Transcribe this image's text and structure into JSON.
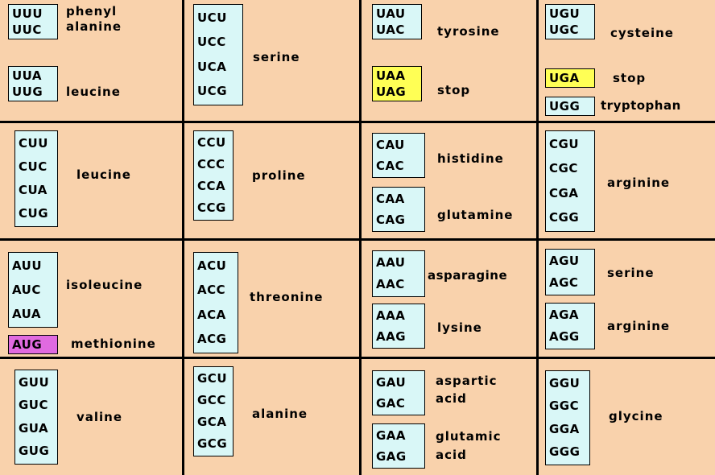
{
  "cells": {
    "UU": {
      "groups": [
        {
          "codons": [
            "UUU",
            "UUC"
          ],
          "name": [
            "phenyl",
            "alanine"
          ]
        },
        {
          "codons": [
            "UUA",
            "UUG"
          ],
          "name": [
            "leucine"
          ]
        }
      ]
    },
    "UC": {
      "groups": [
        {
          "codons": [
            "UCU",
            "UCC",
            "UCA",
            "UCG"
          ],
          "name": [
            "serine"
          ]
        }
      ]
    },
    "UA": {
      "groups": [
        {
          "codons": [
            "UAU",
            "UAC"
          ],
          "name": [
            "tyrosine"
          ]
        },
        {
          "codons": [
            "UAA",
            "UAG"
          ],
          "name": [
            "stop"
          ]
        }
      ]
    },
    "UG": {
      "groups": [
        {
          "codons": [
            "UGU",
            "UGC"
          ],
          "name": [
            "cysteine"
          ]
        },
        {
          "codons": [
            "UGA"
          ],
          "name": [
            "stop"
          ]
        },
        {
          "codons": [
            "UGG"
          ],
          "name": [
            "tryptophan"
          ]
        }
      ]
    },
    "CU": {
      "groups": [
        {
          "codons": [
            "CUU",
            "CUC",
            "CUA",
            "CUG"
          ],
          "name": [
            "leucine"
          ]
        }
      ]
    },
    "CC": {
      "groups": [
        {
          "codons": [
            "CCU",
            "CCC",
            "CCA",
            "CCG"
          ],
          "name": [
            "proline"
          ]
        }
      ]
    },
    "CA": {
      "groups": [
        {
          "codons": [
            "CAU",
            "CAC"
          ],
          "name": [
            "histidine"
          ]
        },
        {
          "codons": [
            "CAA",
            "CAG"
          ],
          "name": [
            "glutamine"
          ]
        }
      ]
    },
    "CG": {
      "groups": [
        {
          "codons": [
            "CGU",
            "CGC",
            "CGA",
            "CGG"
          ],
          "name": [
            "arginine"
          ]
        }
      ]
    },
    "AU": {
      "groups": [
        {
          "codons": [
            "AUU",
            "AUC",
            "AUA"
          ],
          "name": [
            "isoleucine"
          ]
        },
        {
          "codons": [
            "AUG"
          ],
          "name": [
            "methionine"
          ]
        }
      ]
    },
    "AC": {
      "groups": [
        {
          "codons": [
            "ACU",
            "ACC",
            "ACA",
            "ACG"
          ],
          "name": [
            "threonine"
          ]
        }
      ]
    },
    "AA": {
      "groups": [
        {
          "codons": [
            "AAU",
            "AAC"
          ],
          "name": [
            "asparagine"
          ]
        },
        {
          "codons": [
            "AAA",
            "AAG"
          ],
          "name": [
            "lysine"
          ]
        }
      ]
    },
    "AG": {
      "groups": [
        {
          "codons": [
            "AGU",
            "AGC"
          ],
          "name": [
            "serine"
          ]
        },
        {
          "codons": [
            "AGA",
            "AGG"
          ],
          "name": [
            "arginine"
          ]
        }
      ]
    },
    "GU": {
      "groups": [
        {
          "codons": [
            "GUU",
            "GUC",
            "GUA",
            "GUG"
          ],
          "name": [
            "valine"
          ]
        }
      ]
    },
    "GC": {
      "groups": [
        {
          "codons": [
            "GCU",
            "GCC",
            "GCA",
            "GCG"
          ],
          "name": [
            "alanine"
          ]
        }
      ]
    },
    "GA": {
      "groups": [
        {
          "codons": [
            "GAU",
            "GAC"
          ],
          "name": [
            "aspartic",
            "acid"
          ]
        },
        {
          "codons": [
            "GAA",
            "GAG"
          ],
          "name": [
            "glutamic",
            "acid"
          ]
        }
      ]
    },
    "GG": {
      "groups": [
        {
          "codons": [
            "GGU",
            "GGC",
            "GGA",
            "GGG"
          ],
          "name": [
            "glycine"
          ]
        }
      ]
    }
  },
  "colors": {
    "background": "#f9d2ac",
    "codon_box": "#d9f7f7",
    "stop_box": "#ffff55",
    "start_box": "#e06ae0",
    "grid_lines": "#000000"
  }
}
